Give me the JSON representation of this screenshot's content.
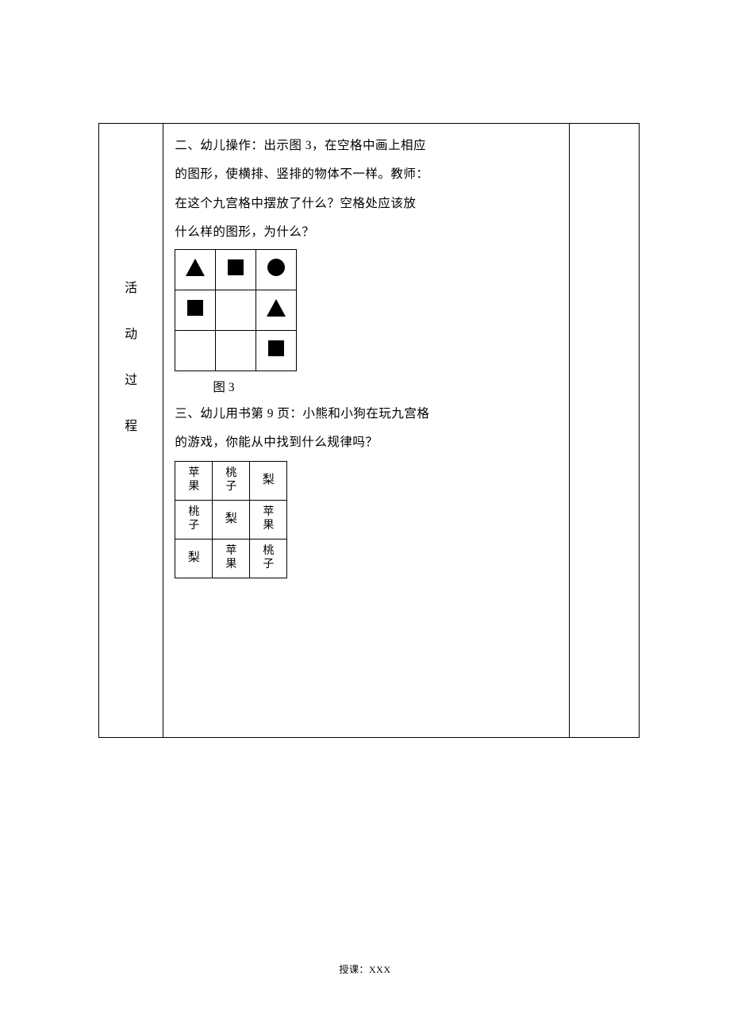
{
  "leftLabel": {
    "c1": "活",
    "c2": "动",
    "c3": "过",
    "c4": "程"
  },
  "section2": {
    "line1": "二、幼儿操作：出示图 3，在空格中画上相应",
    "line2": "的图形，使横排、竖排的物体不一样。教师：",
    "line3": "在这个九宫格中摆放了什么？空格处应该放",
    "line4": "什么样的图形，为什么？"
  },
  "fig3": {
    "caption": "图 3",
    "cells": [
      [
        "triangle",
        "square",
        "circle"
      ],
      [
        "square",
        "",
        "triangle"
      ],
      [
        "",
        "",
        "square"
      ]
    ]
  },
  "section3": {
    "line1": "三、幼儿用书第 9 页：小熊和小狗在玩九宫格",
    "line2": "的游戏，你能从中找到什么规律吗？"
  },
  "fruitGrid": {
    "cells": [
      [
        "苹果",
        "桃子",
        "梨"
      ],
      [
        "桃子",
        "梨",
        "苹果"
      ],
      [
        "梨",
        "苹果",
        "桃子"
      ]
    ]
  },
  "footer": "授课：XXX"
}
